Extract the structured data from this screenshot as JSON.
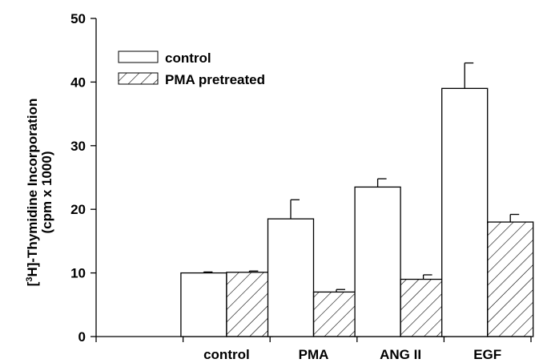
{
  "chart_data": {
    "type": "bar",
    "categories": [
      "control",
      "PMA",
      "ANG II",
      "EGF"
    ],
    "series": [
      {
        "name": "control",
        "pattern": "none",
        "values": [
          10,
          18.5,
          23.5,
          39
        ],
        "errors": [
          0.15,
          3.0,
          1.3,
          4.0
        ]
      },
      {
        "name": "PMA pretreated",
        "pattern": "hatched",
        "values": [
          10.1,
          7.0,
          9.0,
          18.0
        ],
        "errors": [
          0.2,
          0.4,
          0.7,
          1.2
        ]
      }
    ],
    "ylabel_line1_pre": "[",
    "ylabel_sup": "3",
    "ylabel_line1_post": "H]-Thymidine Incorporation",
    "ylabel_line2": "(cpm x 1000)",
    "ylim": [
      0,
      50
    ],
    "yticks": [
      "0",
      "10",
      "20",
      "30",
      "40",
      "50"
    ],
    "legend_position": "top-left",
    "grid": false
  }
}
